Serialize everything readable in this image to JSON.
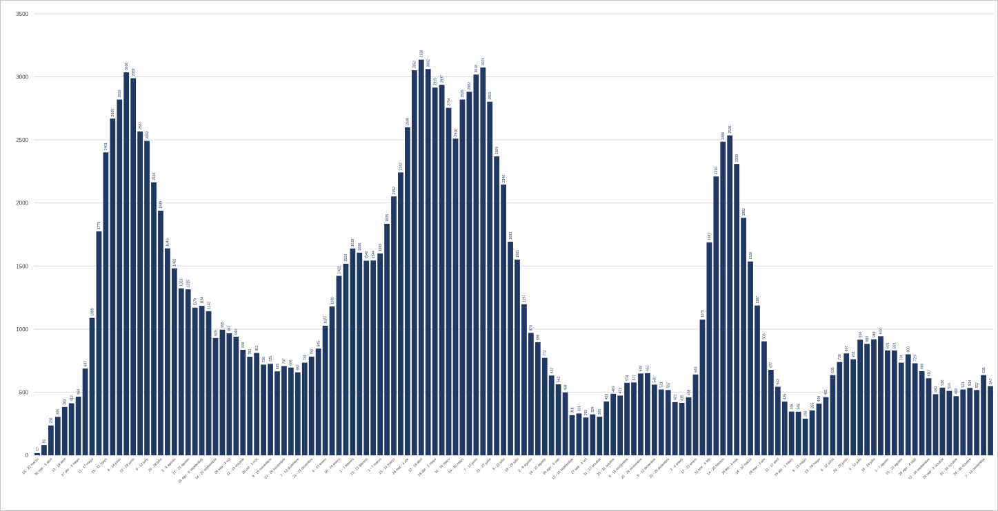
{
  "colors": {
    "bar": "#1f3864",
    "grid": "#d9d9d9",
    "axis_text": "#404040"
  },
  "chart_data": {
    "type": "bar",
    "title": "",
    "xlabel": "",
    "ylabel": "",
    "ylim": [
      0,
      3500
    ],
    "yticks": [
      0,
      500,
      1000,
      1500,
      2000,
      2500,
      3000,
      3500
    ],
    "grid": true,
    "legend": "none",
    "series": [
      {
        "values": [
          17,
          81,
          236,
          305,
          383,
          412,
          464,
          687,
          1089,
          1775,
          2401,
          2669,
          2820,
          3036,
          2989,
          2567,
          2492,
          2164,
          1939,
          1640,
          1482,
          1323,
          1315,
          1170,
          1184,
          1142,
          929,
          995,
          967,
          940,
          836,
          781,
          811,
          718,
          725,
          665,
          707,
          695,
          657,
          734,
          782,
          845,
          1027,
          1180,
          1422,
          1518,
          1639,
          1606,
          1542,
          1544,
          1599,
          1835,
          2052,
          2242,
          2600,
          3052,
          3136,
          3062,
          2915,
          2937,
          2754,
          2510,
          2820,
          2882,
          3018,
          3074,
          2803,
          2369,
          2146,
          1693,
          1551,
          1197,
          970,
          896,
          772,
          632,
          562,
          498,
          318,
          331,
          299,
          324,
          305,
          426,
          487,
          473,
          574,
          577,
          648,
          651,
          560,
          521,
          517,
          421,
          415,
          459,
          640,
          1075,
          1687,
          2210,
          2486,
          2536,
          2309,
          1882,
          1536,
          1187,
          903,
          677,
          543,
          425,
          346,
          345,
          290,
          355,
          409,
          461,
          635,
          739,
          807,
          761,
          916,
          883,
          919,
          943,
          831,
          831,
          734,
          800,
          729,
          666,
          610,
          484,
          536,
          510,
          468,
          521,
          534,
          517,
          635,
          547
        ]
      }
    ],
    "categories": [
      "16 - 22 marzo",
      "",
      "30 mar - 5 abril",
      "",
      "13 - 19 abril",
      "",
      "27 abr - 3 mayo",
      "",
      "11 - 17 mayo",
      "",
      "25 - 31 mayo",
      "",
      "8 - 14 junio",
      "",
      "22 - 28 junio",
      "",
      "6 - 12 julio",
      "",
      "20 - 26 julio",
      "",
      "3 - 9 agosto",
      "",
      "17 - 23 agosto",
      "",
      "31 ago - 6 septiembre",
      "",
      "14 - 20 septiembre",
      "",
      "28 sep - 4 oct",
      "",
      "12 - 18 octubre",
      "",
      "26 oct - 1 nov",
      "",
      "9 - 15 noviembre",
      "",
      "23 - 29 noviembre",
      "",
      "7 - 13 diciembre",
      "",
      "21 - 27 diciembre",
      "",
      "4 - 10 enero",
      "",
      "18 - 24 enero",
      "",
      "1 - 7 febrero",
      "",
      "15 - 21 febrero",
      "",
      "1 - 7 marzo",
      "",
      "15 - 21 marzo",
      "",
      "29 mar - 4 abr",
      "",
      "12 - 18 abril",
      "",
      "26 abr - 2 mayo",
      "",
      "10 - 16 mayo",
      "",
      "24 - 30 mayo",
      "",
      "7 - 13 junio",
      "",
      "21 - 27 junio",
      "",
      "5 - 11 julio",
      "",
      "19 - 25 julio",
      "",
      "2 - 8 agosto",
      "",
      "16 - 22 agosto",
      "",
      "30 ago - 5 sep",
      "",
      "13 - 19 septiembre",
      "",
      "27 sep - 3 oct",
      "",
      "11 - 17 octubre",
      "",
      "25 - 31 octubre",
      "",
      "8 - 14 noviembre",
      "",
      "22 - 28 noviembre",
      "",
      "6 - 12 diciembre",
      "",
      "20 - 26 diciembre",
      "",
      "3 - 9 enero",
      "",
      "17 - 23 enero",
      "",
      "31 ene - 6 feb",
      "",
      "14 - 20 febrero",
      "",
      "28 feb - 6 mar",
      "",
      "14 - 20 marzo",
      "",
      "28 mar - 3 abr",
      "",
      "11 - 17 abril",
      "",
      "25 abr - 1 mayo",
      "",
      "9 - 15 mayo",
      "",
      "23 - 29 mayo",
      "",
      "6 - 12 junio",
      "",
      "20 - 26 junio",
      "",
      "4 - 10 julio",
      "",
      "18 - 24 julio",
      "",
      "1 - 7 agosto",
      "",
      "15 - 21 agosto",
      "",
      "29 ago - 4 sept",
      "",
      "12 - 18 septiembre",
      "",
      "26 sep - 2 octubre",
      "",
      "10 - 16 octubre",
      "",
      "24 - 30 octubre",
      "",
      "7 - 13 noviembre",
      ""
    ]
  }
}
